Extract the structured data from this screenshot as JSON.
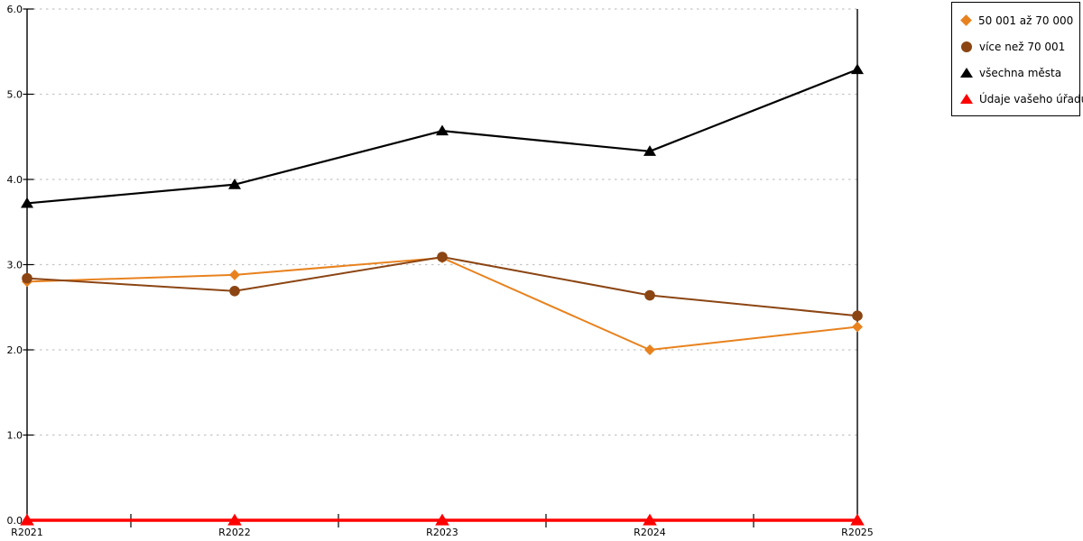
{
  "chart_data": {
    "type": "line",
    "title": "",
    "xlabel": "",
    "ylabel": "",
    "categories": [
      "R2021",
      "R2022",
      "R2023",
      "R2024",
      "R2025"
    ],
    "series": [
      {
        "name": "50 001 až 70 000",
        "marker": "diamond",
        "color": "#E8821E",
        "line_width": 2,
        "values": [
          2.8,
          2.88,
          3.08,
          2.0,
          2.27
        ]
      },
      {
        "name": "více než 70 001",
        "marker": "circle",
        "color": "#8B4513",
        "line_width": 2,
        "values": [
          2.84,
          2.69,
          3.09,
          2.64,
          2.4
        ]
      },
      {
        "name": "všechna města",
        "marker": "triangle",
        "color": "#000000",
        "line_width": 2.2,
        "values": [
          3.72,
          3.94,
          4.57,
          4.33,
          5.29
        ]
      },
      {
        "name": "Údaje vašeho úřadu",
        "marker": "triangle",
        "color": "#FF0000",
        "line_width": 3.5,
        "values": [
          0,
          0,
          0,
          0,
          0
        ]
      }
    ],
    "ylim": [
      0,
      6
    ],
    "ytick_labels": [
      "0.0",
      "1.0",
      "2.0",
      "3.0",
      "4.0",
      "5.0",
      "6.0"
    ],
    "grid": "horizontal-dashed",
    "grid_color": "#C5C5C5",
    "axis_color": "#000000",
    "background": "#FFFFFF",
    "legend_position": "top-right"
  }
}
